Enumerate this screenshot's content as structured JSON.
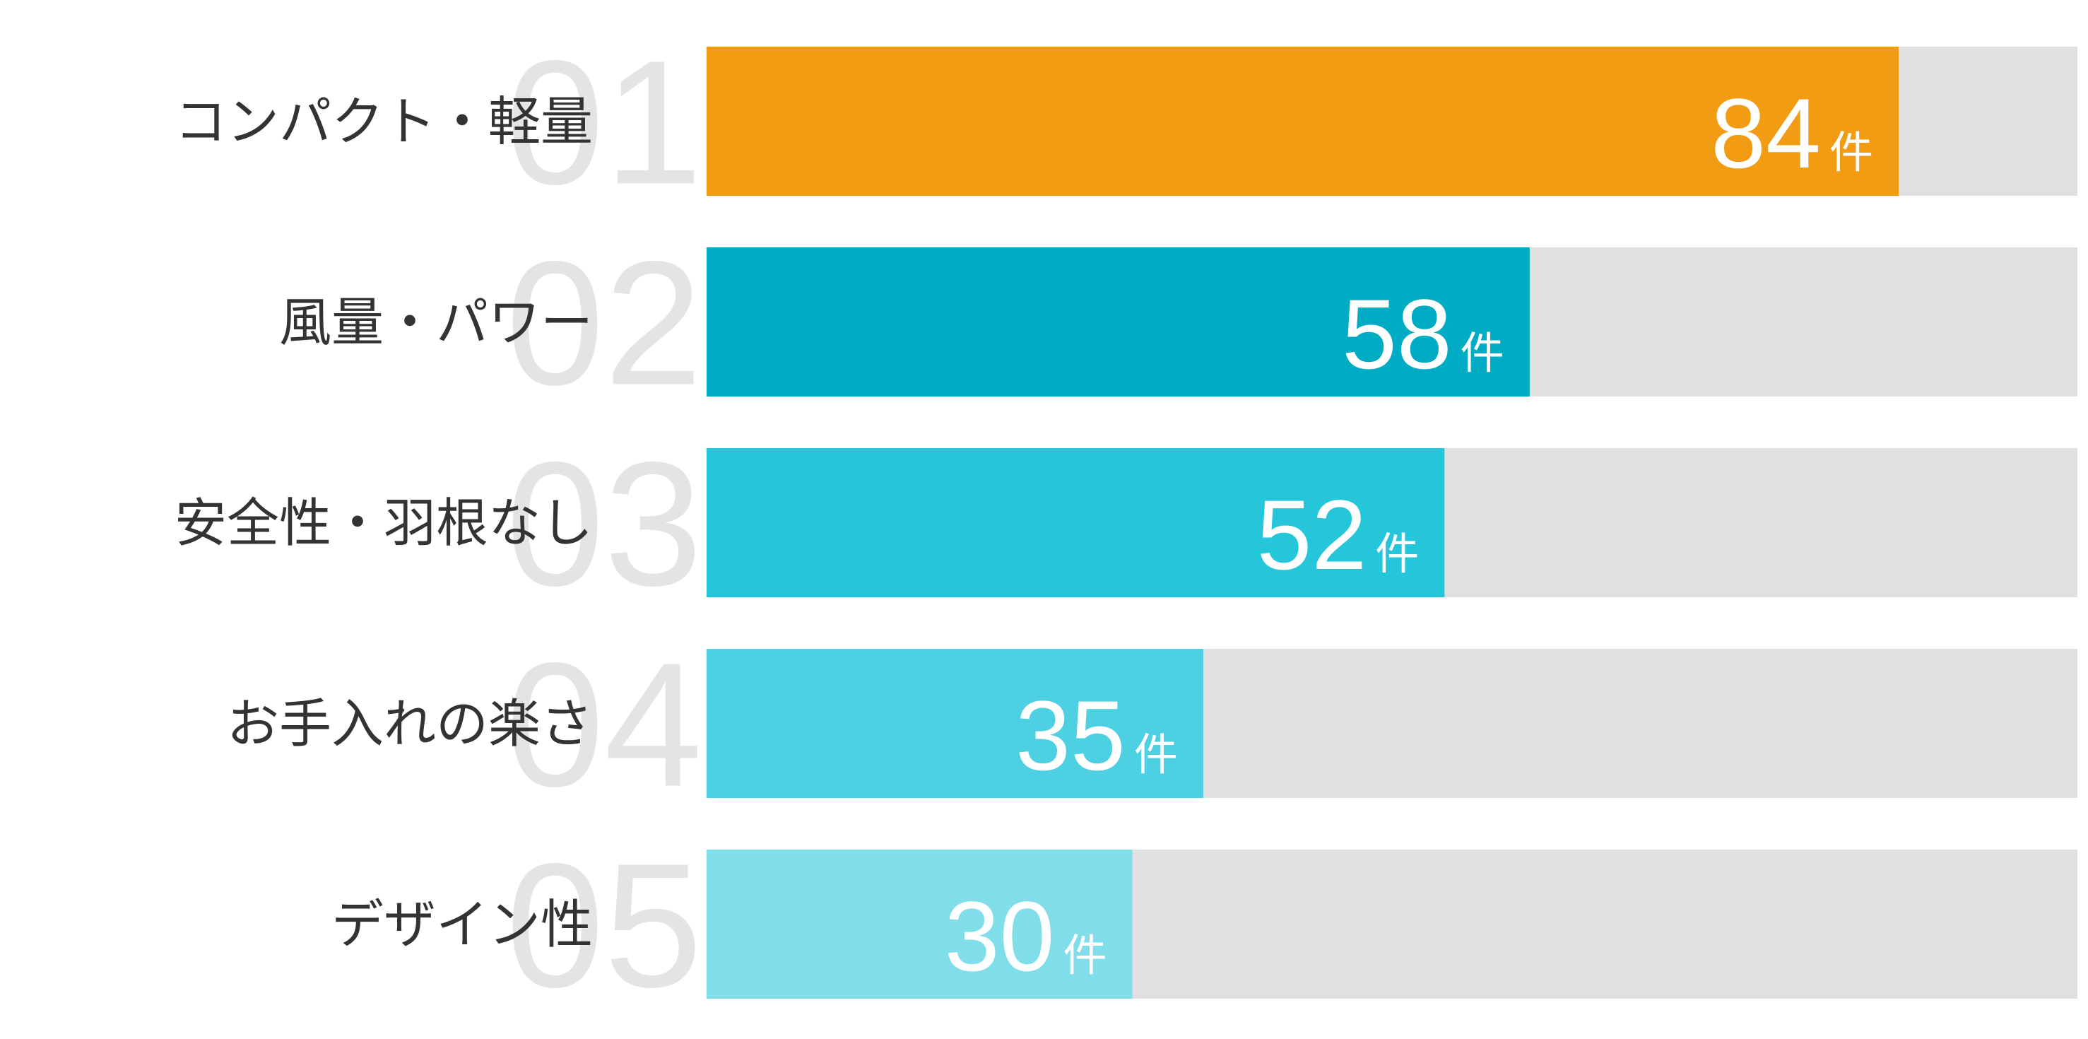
{
  "chart_data": {
    "type": "bar",
    "orientation": "horizontal",
    "ranks": [
      "01",
      "02",
      "03",
      "04",
      "05"
    ],
    "categories": [
      "コンパクト・軽量",
      "風量・パワー",
      "安全性・羽根なし",
      "お手入れの楽さ",
      "デザイン性"
    ],
    "values": [
      84,
      58,
      52,
      35,
      30
    ],
    "unit": "件",
    "colors": [
      "#f29c14",
      "#00acc4",
      "#26c6da",
      "#4dd0e1",
      "#80deea"
    ],
    "track_color": "#e0e0e0",
    "xlim": [
      0,
      96.6
    ]
  }
}
